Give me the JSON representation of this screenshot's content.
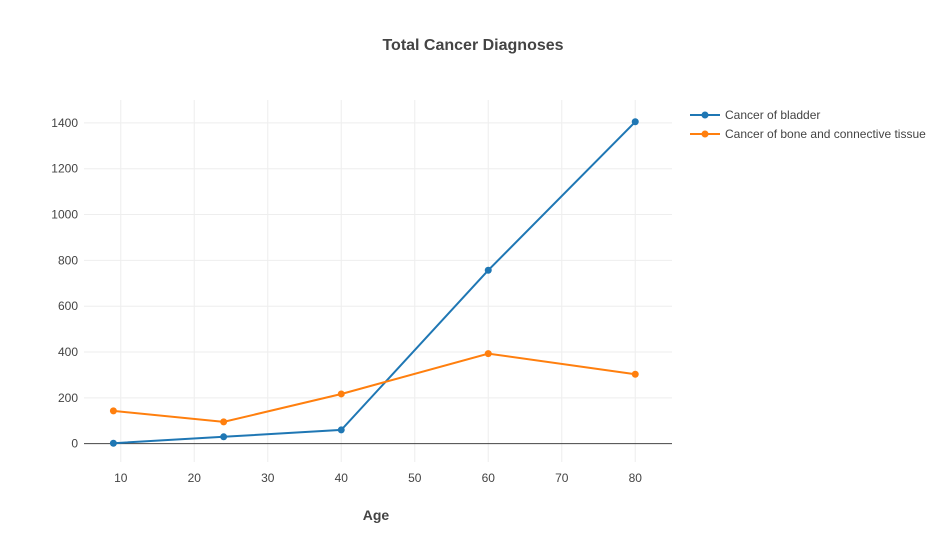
{
  "chart_data": {
    "type": "line",
    "title": "Total Cancer Diagnoses",
    "xlabel": "Age",
    "ylabel": "",
    "xlim": [
      5,
      85
    ],
    "ylim": [
      -80,
      1500
    ],
    "xticks": [
      10,
      20,
      30,
      40,
      50,
      60,
      70,
      80
    ],
    "yticks": [
      0,
      200,
      400,
      600,
      800,
      1000,
      1200,
      1400
    ],
    "grid": true,
    "legend_position": "top-right, outside plot",
    "series": [
      {
        "name": "Cancer of bladder",
        "color": "#1f77b4",
        "x": [
          9,
          24,
          40,
          60,
          80
        ],
        "y": [
          2,
          30,
          60,
          757,
          1405
        ]
      },
      {
        "name": "Cancer of bone and connective tissue",
        "color": "#ff7f0e",
        "x": [
          9,
          24,
          40,
          60,
          80
        ],
        "y": [
          143,
          95,
          217,
          393,
          303
        ]
      }
    ]
  }
}
